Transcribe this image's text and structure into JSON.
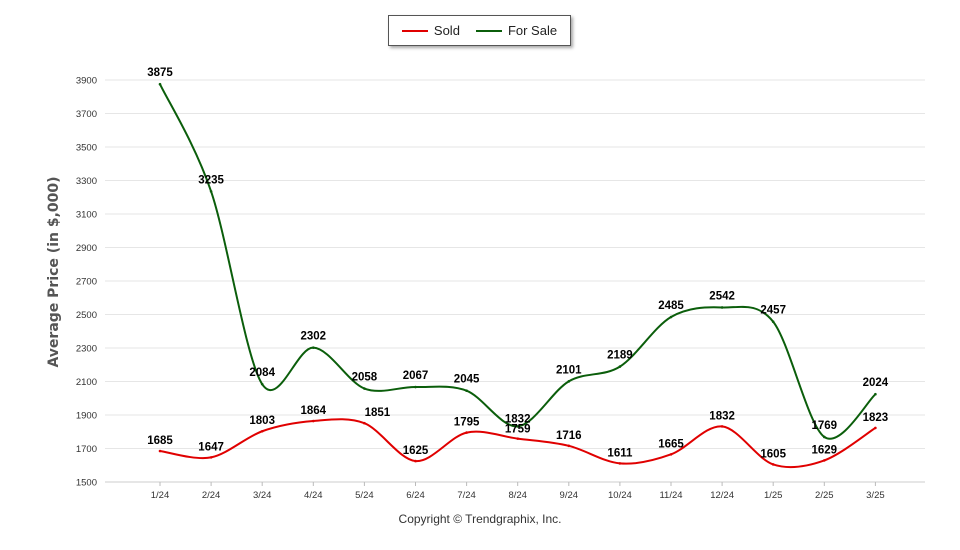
{
  "legend": {
    "items": [
      {
        "label": "Sold",
        "color": "#e00000"
      },
      {
        "label": "For Sale",
        "color": "#0b5e0b"
      }
    ]
  },
  "copyright": "Copyright © Trendgraphix, Inc.",
  "chart_data": {
    "type": "line",
    "title": "",
    "xlabel": "",
    "ylabel": "Average Price (in $,000)",
    "categories": [
      "1/24",
      "2/24",
      "3/24",
      "4/24",
      "5/24",
      "6/24",
      "7/24",
      "8/24",
      "9/24",
      "10/24",
      "11/24",
      "12/24",
      "1/25",
      "2/25",
      "3/25"
    ],
    "ylim": [
      1500,
      3900
    ],
    "yticks": [
      1500,
      1700,
      1900,
      2100,
      2300,
      2500,
      2700,
      2900,
      3100,
      3300,
      3500,
      3700,
      3900
    ],
    "grid": true,
    "legend_position": "top-center",
    "series": [
      {
        "name": "Sold",
        "color": "#e00000",
        "values": [
          1685,
          1647,
          1803,
          1864,
          1851,
          1625,
          1795,
          1759,
          1716,
          1611,
          1665,
          1832,
          1605,
          1629,
          1823
        ]
      },
      {
        "name": "For Sale",
        "color": "#0b5e0b",
        "values": [
          3875,
          3235,
          2084,
          2302,
          2058,
          2067,
          2045,
          1832,
          2101,
          2189,
          2485,
          2542,
          2457,
          1769,
          2024
        ]
      }
    ]
  }
}
